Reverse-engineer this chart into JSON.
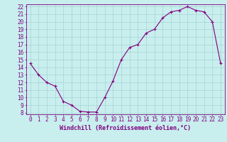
{
  "x": [
    0,
    1,
    2,
    3,
    4,
    5,
    6,
    7,
    8,
    9,
    10,
    11,
    12,
    13,
    14,
    15,
    16,
    17,
    18,
    19,
    20,
    21,
    22,
    23
  ],
  "y": [
    14.5,
    13.0,
    12.0,
    11.5,
    9.5,
    9.0,
    8.2,
    8.1,
    8.1,
    10.0,
    12.2,
    15.0,
    16.6,
    17.0,
    18.5,
    19.0,
    20.5,
    21.3,
    21.5,
    22.0,
    21.5,
    21.3,
    20.0,
    14.5
  ],
  "line_color": "#800080",
  "marker": "+",
  "marker_size": 3,
  "marker_linewidth": 0.8,
  "line_width": 0.8,
  "bg_color": "#c8eeee",
  "grid_color": "#a0cccc",
  "axis_color": "#800080",
  "xlabel": "Windchill (Refroidissement éolien,°C)",
  "ylabel": "",
  "xlim": [
    -0.5,
    23.5
  ],
  "ylim": [
    7.8,
    22.3
  ],
  "xticks": [
    0,
    1,
    2,
    3,
    4,
    5,
    6,
    7,
    8,
    9,
    10,
    11,
    12,
    13,
    14,
    15,
    16,
    17,
    18,
    19,
    20,
    21,
    22,
    23
  ],
  "yticks": [
    8,
    9,
    10,
    11,
    12,
    13,
    14,
    15,
    16,
    17,
    18,
    19,
    20,
    21,
    22
  ],
  "tick_fontsize": 5.5,
  "label_fontsize": 6.0
}
